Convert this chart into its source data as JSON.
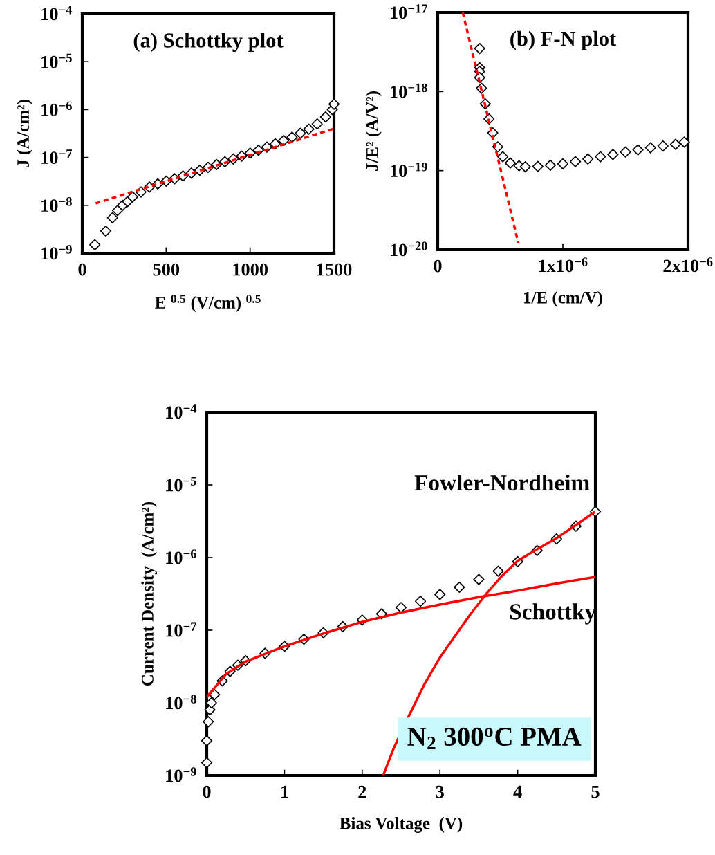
{
  "chart_data": [
    {
      "type": "scatter",
      "title": "(a) Schottky plot",
      "xlabel": "E $^{0.5}$ (V/cm) $^{0.5}$",
      "ylabel": "J (A/cm²)",
      "log": "y",
      "xlim": [
        0,
        1500
      ],
      "xticks": [
        0,
        500,
        1000,
        1500
      ],
      "ylim": [
        1e-09,
        0.0001
      ],
      "yticks": [
        {
          "value": 1e-09,
          "label": "10$^{−9}$"
        },
        {
          "value": 1e-08,
          "label": "10$^{−8}$"
        },
        {
          "value": 1e-07,
          "label": "10$^{−7}$"
        },
        {
          "value": 1e-06,
          "label": "10$^{−6}$"
        },
        {
          "value": 1e-05,
          "label": "10$^{−5}$"
        },
        {
          "value": 0.0001,
          "label": "10$^{−4}$"
        }
      ],
      "series": [
        {
          "type": "scatter",
          "marker": "diamond",
          "color": "#000000",
          "x": [
            75,
            140,
            180,
            210,
            240,
            270,
            300,
            350,
            400,
            450,
            500,
            550,
            600,
            650,
            700,
            750,
            800,
            850,
            900,
            950,
            1000,
            1050,
            1100,
            1150,
            1200,
            1250,
            1300,
            1350,
            1400,
            1450,
            1490,
            1500
          ],
          "values": [
            1.5e-09,
            2.9e-09,
            5.5e-09,
            7.8e-09,
            1e-08,
            1.2e-08,
            1.5e-08,
            1.9e-08,
            2.4e-08,
            2.8e-08,
            3.2e-08,
            3.6e-08,
            4.1e-08,
            4.7e-08,
            5.4e-08,
            6.2e-08,
            7.1e-08,
            8.1e-08,
            9.3e-08,
            1.07e-07,
            1.23e-07,
            1.42e-07,
            1.65e-07,
            1.92e-07,
            2.25e-07,
            2.65e-07,
            3.2e-07,
            3.9e-07,
            5e-07,
            7e-07,
            1e-06,
            1.3e-06
          ]
        },
        {
          "type": "line",
          "marker": "none",
          "line_style": "dashed",
          "color": "#ff0000",
          "x": [
            80,
            1500
          ],
          "values": [
            1.1e-08,
            4e-07
          ]
        }
      ]
    },
    {
      "type": "scatter",
      "title": "(b) F-N plot",
      "xlabel": "1/E (cm/V)",
      "ylabel": "J/E² (A/V²)",
      "log": "y",
      "xlim": [
        0,
        2e-06
      ],
      "xticks": [
        0,
        {
          "value": 1e-06,
          "label": "1x10$^{−6}$"
        },
        {
          "value": 2e-06,
          "label": "2x10$^{−6}$"
        }
      ],
      "ylim": [
        1e-20,
        1e-17
      ],
      "yticks": [
        {
          "value": 1e-20,
          "label": "10$^{−20}$"
        },
        {
          "value": 1e-19,
          "label": "10$^{−19}$"
        },
        {
          "value": 1e-18,
          "label": "10$^{−18}$"
        },
        {
          "value": 1e-17,
          "label": "10$^{−17}$"
        }
      ],
      "series": [
        {
          "type": "scatter",
          "marker": "diamond",
          "color": "#000000",
          "x": [
            3.35e-07,
            3.35e-07,
            3.35e-07,
            3.35e-07,
            3.5e-07,
            3.8e-07,
            4.1e-07,
            4.4e-07,
            4.8e-07,
            5.2e-07,
            5.8e-07,
            6.5e-07,
            7e-07,
            8e-07,
            9e-07,
            1e-06,
            1.1e-06,
            1.2e-06,
            1.3e-06,
            1.4e-06,
            1.5e-06,
            1.6e-06,
            1.7e-06,
            1.8e-06,
            1.9e-06,
            1.97e-06
          ],
          "values": [
            3.5e-18,
            2e-18,
            1.8e-18,
            1.5e-18,
            1.1e-18,
            7e-19,
            4.5e-19,
            3e-19,
            2e-19,
            1.5e-19,
            1.25e-19,
            1.15e-19,
            1.12e-19,
            1.13e-19,
            1.17e-19,
            1.22e-19,
            1.3e-19,
            1.4e-19,
            1.5e-19,
            1.6e-19,
            1.72e-19,
            1.83e-19,
            1.95e-19,
            2.05e-19,
            2.15e-19,
            2.3e-19
          ]
        },
        {
          "type": "line",
          "marker": "none",
          "line_style": "dashed",
          "color": "#ff0000",
          "x": [
            2e-07,
            6.45e-07
          ],
          "values": [
            1e-17,
            1.2e-20
          ]
        }
      ]
    },
    {
      "type": "scatter",
      "xlabel": "Bias Voltage  (V)",
      "ylabel": "Current Density  (A/cm²)",
      "log": "y",
      "xlim": [
        0,
        5
      ],
      "xticks": [
        0,
        1,
        2,
        3,
        4,
        5
      ],
      "ylim": [
        1e-09,
        0.0001
      ],
      "yticks": [
        {
          "value": 1e-09,
          "label": "10$^{−9}$"
        },
        {
          "value": 1e-08,
          "label": "10$^{−8}$"
        },
        {
          "value": 1e-07,
          "label": "10$^{−7}$"
        },
        {
          "value": 1e-06,
          "label": "10$^{−6}$"
        },
        {
          "value": 1e-05,
          "label": "10$^{−5}$"
        },
        {
          "value": 0.0001,
          "label": "10$^{−4}$"
        }
      ],
      "annotations": [
        "Fowler-Nordheim",
        "Schottky",
        "N$_{2}$ 300$^{o}$C PMA"
      ],
      "series": [
        {
          "type": "scatter",
          "marker": "diamond",
          "color": "#000000",
          "x": [
            0,
            0,
            0.02,
            0.04,
            0.06,
            0.1,
            0.2,
            0.3,
            0.4,
            0.5,
            0.75,
            1,
            1.25,
            1.5,
            1.75,
            2,
            2.25,
            2.5,
            2.75,
            3,
            3.25,
            3.5,
            3.75,
            4,
            4.25,
            4.5,
            4.75,
            5
          ],
          "values": [
            1.5e-09,
            3e-09,
            5.5e-09,
            8e-09,
            1e-08,
            1.3e-08,
            2e-08,
            2.7e-08,
            3.3e-08,
            3.8e-08,
            4.8e-08,
            6e-08,
            7.5e-08,
            9.2e-08,
            1.12e-07,
            1.38e-07,
            1.68e-07,
            2.05e-07,
            2.5e-07,
            3.1e-07,
            3.9e-07,
            5e-07,
            6.5e-07,
            8.8e-07,
            1.25e-06,
            1.8e-06,
            2.7e-06,
            4.3e-06
          ]
        },
        {
          "type": "line",
          "marker": "none",
          "line_style": "solid",
          "color": "#ff0000",
          "x": [
            0,
            0.25,
            0.5,
            1,
            1.5,
            2,
            2.5,
            3,
            3.5,
            4,
            4.5,
            5
          ],
          "values": [
            1.2e-08,
            2.5e-08,
            3.7e-08,
            6e-08,
            9e-08,
            1.3e-07,
            1.75e-07,
            2.25e-07,
            2.85e-07,
            3.5e-07,
            4.4e-07,
            5.4e-07
          ]
        },
        {
          "type": "line",
          "marker": "none",
          "line_style": "solid",
          "color": "#ff0000",
          "x": [
            2.27,
            2.4,
            2.6,
            2.8,
            3,
            3.2,
            3.4,
            3.6,
            3.8,
            4,
            4.25,
            4.5,
            4.75,
            5
          ],
          "values": [
            1e-09,
            2.3e-09,
            6.6e-09,
            1.8e-08,
            4.2e-08,
            8.5e-08,
            1.7e-07,
            3.2e-07,
            5.6e-07,
            9e-07,
            1.3e-06,
            1.85e-06,
            2.8e-06,
            4.3e-06
          ]
        }
      ]
    }
  ]
}
